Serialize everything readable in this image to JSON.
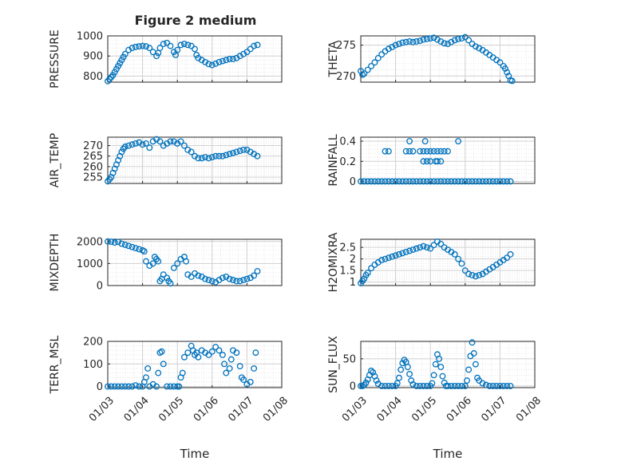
{
  "figure": {
    "title": "Figure 2 medium",
    "marker_color": "#0072BD"
  },
  "x_ticks": [
    "01/03",
    "01/04",
    "01/05",
    "01/06",
    "01/07",
    "01/08"
  ],
  "chart_data": [
    {
      "type": "scatter",
      "ylabel": "PRESSURE",
      "title": "Figure 2 medium",
      "xlabel": "",
      "xlim": [
        "01/03",
        "01/08"
      ],
      "ylim": [
        770,
        1000
      ],
      "yticks": [
        800,
        900,
        1000
      ],
      "x": [
        3.0,
        3.05,
        3.1,
        3.15,
        3.2,
        3.25,
        3.3,
        3.35,
        3.4,
        3.45,
        3.5,
        3.6,
        3.7,
        3.8,
        3.9,
        4.0,
        4.1,
        4.2,
        4.3,
        4.4,
        4.45,
        4.5,
        4.6,
        4.7,
        4.8,
        4.9,
        4.95,
        5.0,
        5.1,
        5.2,
        5.3,
        5.4,
        5.5,
        5.55,
        5.6,
        5.7,
        5.8,
        5.9,
        6.0,
        6.1,
        6.2,
        6.3,
        6.4,
        6.5,
        6.6,
        6.7,
        6.8,
        6.9,
        7.0,
        7.1,
        7.2,
        7.3
      ],
      "y": [
        775,
        785,
        795,
        805,
        820,
        835,
        850,
        865,
        880,
        895,
        910,
        930,
        940,
        945,
        948,
        950,
        948,
        940,
        920,
        900,
        915,
        940,
        960,
        965,
        950,
        920,
        905,
        930,
        955,
        960,
        955,
        950,
        935,
        905,
        890,
        880,
        870,
        860,
        855,
        862,
        870,
        875,
        880,
        885,
        885,
        890,
        900,
        910,
        920,
        935,
        950,
        955
      ]
    },
    {
      "type": "scatter",
      "ylabel": "THETA",
      "xlabel": "",
      "xlim": [
        "01/03",
        "01/08"
      ],
      "ylim": [
        269,
        276.5
      ],
      "yticks": [
        270,
        275
      ],
      "x": [
        3.0,
        3.05,
        3.1,
        3.2,
        3.3,
        3.4,
        3.5,
        3.6,
        3.7,
        3.8,
        3.9,
        4.0,
        4.1,
        4.2,
        4.3,
        4.4,
        4.5,
        4.6,
        4.7,
        4.8,
        4.9,
        5.0,
        5.1,
        5.2,
        5.3,
        5.4,
        5.5,
        5.6,
        5.7,
        5.8,
        5.9,
        6.0,
        6.1,
        6.2,
        6.3,
        6.4,
        6.5,
        6.6,
        6.7,
        6.8,
        6.9,
        7.0,
        7.1,
        7.15,
        7.2,
        7.25,
        7.3,
        7.35
      ],
      "y": [
        270.8,
        270.2,
        270.4,
        271.0,
        271.6,
        272.2,
        272.9,
        273.5,
        274.0,
        274.4,
        274.7,
        275.0,
        275.2,
        275.4,
        275.5,
        275.6,
        275.5,
        275.6,
        275.7,
        275.9,
        276.0,
        276.1,
        276.2,
        275.9,
        275.6,
        275.3,
        275.2,
        275.5,
        275.8,
        276.0,
        276.1,
        276.3,
        275.8,
        275.2,
        274.8,
        274.5,
        274.2,
        273.8,
        273.4,
        273.0,
        272.6,
        272.2,
        271.6,
        271.2,
        270.6,
        270.0,
        269.3,
        269.2
      ]
    },
    {
      "type": "scatter",
      "ylabel": "AIR_TEMP",
      "xlabel": "",
      "xlim": [
        "01/03",
        "01/08"
      ],
      "ylim": [
        252,
        274
      ],
      "yticks": [
        255,
        260,
        265,
        270
      ],
      "x": [
        3.0,
        3.05,
        3.1,
        3.15,
        3.2,
        3.25,
        3.3,
        3.35,
        3.4,
        3.45,
        3.5,
        3.6,
        3.7,
        3.8,
        3.9,
        4.0,
        4.1,
        4.2,
        4.3,
        4.4,
        4.5,
        4.6,
        4.7,
        4.8,
        4.9,
        5.0,
        5.1,
        5.2,
        5.3,
        5.4,
        5.5,
        5.6,
        5.7,
        5.8,
        5.9,
        6.0,
        6.1,
        6.2,
        6.3,
        6.4,
        6.5,
        6.6,
        6.7,
        6.8,
        6.9,
        7.0,
        7.1,
        7.2,
        7.3
      ],
      "y": [
        253,
        254,
        255,
        257,
        259,
        261,
        263,
        265,
        267,
        268.5,
        269.5,
        270,
        270.5,
        271,
        271.5,
        270.5,
        271,
        269,
        272,
        273,
        272,
        270,
        271,
        272,
        272,
        271,
        272,
        270,
        268,
        267,
        265,
        264,
        264,
        264.5,
        264,
        264.5,
        265,
        265,
        265,
        265.5,
        266,
        266.5,
        267,
        267.5,
        268,
        268,
        267,
        266,
        265
      ]
    },
    {
      "type": "scatter",
      "ylabel": "RAINFALL",
      "xlabel": "",
      "xlim": [
        "01/03",
        "01/08"
      ],
      "ylim": [
        -0.02,
        0.44
      ],
      "yticks": [
        0,
        0.2,
        0.4
      ],
      "x": [
        3.0,
        3.1,
        3.2,
        3.3,
        3.4,
        3.5,
        3.6,
        3.7,
        3.8,
        3.9,
        4.0,
        4.1,
        4.2,
        4.3,
        4.4,
        4.5,
        4.6,
        4.7,
        4.8,
        4.9,
        5.0,
        5.1,
        5.2,
        5.3,
        5.4,
        5.5,
        5.6,
        5.7,
        5.8,
        5.9,
        6.0,
        6.1,
        6.2,
        6.3,
        6.4,
        6.5,
        6.6,
        6.7,
        6.8,
        6.9,
        7.0,
        7.1,
        7.2,
        7.3,
        3.7,
        3.8,
        4.3,
        4.4,
        4.5,
        4.7,
        4.8,
        4.9,
        5.0,
        5.1,
        5.2,
        5.3,
        5.4,
        5.5,
        4.8,
        4.9,
        5.0,
        5.15,
        5.2,
        5.3,
        4.4,
        4.85,
        5.8
      ],
      "y": [
        0,
        0,
        0,
        0,
        0,
        0,
        0,
        0,
        0,
        0,
        0,
        0,
        0,
        0,
        0,
        0,
        0,
        0,
        0,
        0,
        0,
        0,
        0,
        0,
        0,
        0,
        0,
        0,
        0,
        0,
        0,
        0,
        0,
        0,
        0,
        0,
        0,
        0,
        0,
        0,
        0,
        0,
        0,
        0,
        0.3,
        0.3,
        0.3,
        0.3,
        0.3,
        0.3,
        0.3,
        0.3,
        0.3,
        0.3,
        0.3,
        0.3,
        0.3,
        0.3,
        0.2,
        0.2,
        0.2,
        0.2,
        0.2,
        0.2,
        0.4,
        0.4,
        0.4
      ]
    },
    {
      "type": "scatter",
      "ylabel": "MIXDEPTH",
      "xlabel": "",
      "xlim": [
        "01/03",
        "01/08"
      ],
      "ylim": [
        0,
        2100
      ],
      "yticks": [
        0,
        1000,
        2000
      ],
      "x": [
        3.0,
        3.1,
        3.2,
        3.3,
        3.4,
        3.5,
        3.6,
        3.7,
        3.8,
        3.9,
        4.0,
        4.05,
        4.1,
        4.2,
        4.3,
        4.35,
        4.4,
        4.45,
        4.5,
        4.55,
        4.6,
        4.7,
        4.75,
        4.8,
        4.9,
        5.0,
        5.1,
        5.2,
        5.25,
        5.3,
        5.4,
        5.5,
        5.6,
        5.7,
        5.8,
        5.9,
        6.0,
        6.1,
        6.2,
        6.3,
        6.4,
        6.5,
        6.6,
        6.7,
        6.8,
        6.9,
        7.0,
        7.1,
        7.2,
        7.3
      ],
      "y": [
        2000,
        1990,
        1950,
        1980,
        1900,
        1850,
        1800,
        1750,
        1700,
        1650,
        1600,
        1550,
        1100,
        900,
        1000,
        1300,
        1200,
        1100,
        200,
        300,
        500,
        350,
        200,
        100,
        800,
        1000,
        1200,
        1300,
        1100,
        500,
        400,
        550,
        450,
        400,
        300,
        250,
        200,
        150,
        250,
        350,
        400,
        300,
        250,
        200,
        200,
        250,
        300,
        350,
        450,
        650
      ]
    },
    {
      "type": "scatter",
      "ylabel": "H2OMIXRA",
      "xlabel": "",
      "xlim": [
        "01/03",
        "01/08"
      ],
      "ylim": [
        0.85,
        2.85
      ],
      "yticks": [
        1,
        1.5,
        2,
        2.5
      ],
      "x": [
        3.0,
        3.05,
        3.1,
        3.15,
        3.2,
        3.3,
        3.4,
        3.5,
        3.6,
        3.7,
        3.8,
        3.9,
        4.0,
        4.1,
        4.2,
        4.3,
        4.4,
        4.5,
        4.6,
        4.7,
        4.8,
        4.9,
        5.0,
        5.1,
        5.2,
        5.3,
        5.4,
        5.5,
        5.6,
        5.7,
        5.8,
        5.9,
        6.0,
        6.1,
        6.2,
        6.3,
        6.4,
        6.5,
        6.6,
        6.7,
        6.8,
        6.9,
        7.0,
        7.1,
        7.2,
        7.3
      ],
      "y": [
        0.95,
        1.05,
        1.15,
        1.3,
        1.4,
        1.6,
        1.75,
        1.85,
        1.95,
        2.0,
        2.05,
        2.1,
        2.15,
        2.2,
        2.25,
        2.3,
        2.35,
        2.4,
        2.45,
        2.5,
        2.55,
        2.5,
        2.45,
        2.6,
        2.75,
        2.65,
        2.5,
        2.4,
        2.3,
        2.2,
        2.0,
        1.8,
        1.5,
        1.35,
        1.3,
        1.25,
        1.3,
        1.35,
        1.45,
        1.55,
        1.65,
        1.75,
        1.85,
        1.95,
        2.05,
        2.2
      ]
    },
    {
      "type": "scatter",
      "ylabel": "TERR_MSL",
      "xlabel": "Time",
      "xlim": [
        "01/03",
        "01/08"
      ],
      "ylim": [
        -5,
        200
      ],
      "yticks": [
        0,
        100,
        200
      ],
      "x": [
        3.0,
        3.1,
        3.2,
        3.3,
        3.4,
        3.5,
        3.6,
        3.7,
        3.8,
        3.9,
        4.0,
        4.05,
        4.1,
        4.15,
        4.2,
        4.3,
        4.4,
        4.45,
        4.5,
        4.55,
        4.6,
        4.7,
        4.8,
        4.9,
        5.0,
        5.05,
        5.1,
        5.15,
        5.2,
        5.3,
        5.4,
        5.45,
        5.5,
        5.55,
        5.6,
        5.7,
        5.8,
        5.9,
        6.0,
        6.1,
        6.2,
        6.3,
        6.35,
        6.4,
        6.5,
        6.55,
        6.6,
        6.7,
        6.8,
        6.85,
        6.9,
        7.0,
        7.1,
        7.2,
        7.25
      ],
      "y": [
        0,
        0,
        0,
        0,
        0,
        0,
        0,
        0,
        5,
        0,
        0,
        20,
        40,
        80,
        0,
        10,
        0,
        60,
        150,
        155,
        100,
        0,
        0,
        0,
        0,
        0,
        40,
        60,
        130,
        150,
        180,
        160,
        140,
        150,
        130,
        160,
        150,
        140,
        155,
        175,
        160,
        140,
        100,
        60,
        80,
        120,
        160,
        150,
        90,
        40,
        30,
        10,
        20,
        80,
        150
      ]
    },
    {
      "type": "scatter",
      "ylabel": "SUN_FLUX",
      "xlabel": "Time",
      "xlim": [
        "01/03",
        "01/08"
      ],
      "ylim": [
        -3,
        82
      ],
      "yticks": [
        0,
        50
      ],
      "x": [
        3.0,
        3.05,
        3.1,
        3.15,
        3.2,
        3.25,
        3.3,
        3.35,
        3.4,
        3.45,
        3.5,
        3.6,
        3.7,
        3.8,
        3.9,
        4.0,
        4.05,
        4.1,
        4.15,
        4.2,
        4.25,
        4.3,
        4.35,
        4.4,
        4.45,
        4.5,
        4.6,
        4.7,
        4.8,
        4.9,
        5.0,
        5.05,
        5.1,
        5.15,
        5.2,
        5.25,
        5.3,
        5.35,
        5.4,
        5.45,
        5.5,
        5.6,
        5.7,
        5.8,
        5.9,
        6.0,
        6.05,
        6.1,
        6.15,
        6.2,
        6.25,
        6.3,
        6.35,
        6.4,
        6.5,
        6.6,
        6.7,
        6.8,
        6.9,
        7.0,
        7.1,
        7.2,
        7.3
      ],
      "y": [
        0,
        0,
        2,
        6,
        12,
        20,
        28,
        25,
        18,
        10,
        4,
        0,
        0,
        0,
        0,
        0,
        5,
        15,
        30,
        42,
        48,
        44,
        35,
        22,
        10,
        3,
        0,
        0,
        0,
        0,
        0,
        5,
        20,
        40,
        58,
        50,
        35,
        18,
        6,
        0,
        0,
        0,
        0,
        0,
        0,
        0,
        10,
        30,
        55,
        80,
        60,
        40,
        15,
        10,
        5,
        2,
        0,
        0,
        0,
        0,
        0,
        0,
        0
      ]
    }
  ]
}
